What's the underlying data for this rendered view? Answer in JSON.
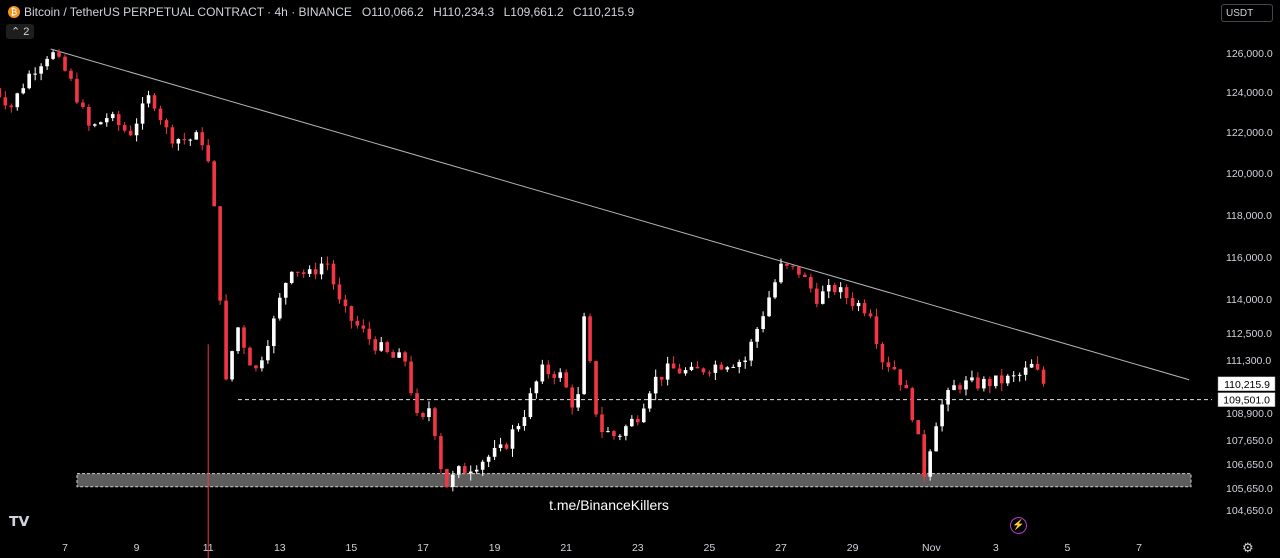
{
  "header": {
    "symbol": "Bitcoin / TetherUS PERPETUAL CONTRACT · 4h · BINANCE",
    "o_label": "O",
    "o": "110,066.2",
    "h_label": "H",
    "h": "110,234.3",
    "l_label": "L",
    "l": "109,661.2",
    "c_label": "C",
    "c": "110,215.9",
    "collapse_count": "2"
  },
  "currency": "USDT",
  "watermark": "t.me/BinanceKillers",
  "colors": {
    "up": "#ffffff",
    "down": "#f23645",
    "background": "#000000",
    "trendline": "#b2b5be"
  },
  "icons": [
    "tradingview-logo-icon",
    "settings-icon",
    "lightning-icon",
    "chevron-icon"
  ],
  "chart_data": {
    "type": "candlestick",
    "interval": "4h",
    "ylim": [
      104000,
      127000
    ],
    "y_ticks": [
      104650,
      105650,
      106650,
      107650,
      108900,
      110250,
      111300,
      112500,
      114000,
      116000,
      118000,
      120000,
      122000,
      124000,
      126000
    ],
    "y_tick_labels": [
      "104,650.0",
      "105,650.0",
      "106,650.0",
      "107,650.0",
      "108,900.0",
      "110,250.0",
      "111,300.0",
      "112,500.0",
      "114,000.0",
      "116,000.0",
      "118,000.0",
      "120,000.0",
      "122,000.0",
      "124,000.0",
      "126,000.0"
    ],
    "x_tick_labels": [
      "7",
      "9",
      "11",
      "13",
      "15",
      "17",
      "19",
      "21",
      "23",
      "25",
      "27",
      "29",
      "Nov",
      "3",
      "5",
      "7"
    ],
    "price_labels": {
      "last": "110,215.9",
      "support_line": "109,501.0"
    },
    "last_price": 110215.9,
    "support_level": 109501.0,
    "support_zone": [
      105700,
      106250
    ],
    "trendline": [
      {
        "x": 6.6,
        "y": 126200
      },
      {
        "x": 38.4,
        "y": 110400
      }
    ],
    "series": [
      {
        "name": "",
        "waypoints": [
          [
            5.0,
            124200
          ],
          [
            5.5,
            123300
          ],
          [
            6.0,
            124900
          ],
          [
            6.6,
            126100
          ],
          [
            7.1,
            124800
          ],
          [
            7.7,
            122100
          ],
          [
            8.2,
            122800
          ],
          [
            8.8,
            121900
          ],
          [
            9.4,
            123900
          ],
          [
            9.9,
            121800
          ],
          [
            10.4,
            121600
          ],
          [
            10.8,
            121800
          ],
          [
            11.1,
            119800
          ],
          [
            11.5,
            110200
          ],
          [
            11.8,
            112900
          ],
          [
            12.3,
            110700
          ],
          [
            12.8,
            112800
          ],
          [
            13.3,
            115600
          ],
          [
            13.8,
            115100
          ],
          [
            14.3,
            115900
          ],
          [
            14.7,
            113600
          ],
          [
            15.1,
            112900
          ],
          [
            15.6,
            112100
          ],
          [
            16.1,
            111400
          ],
          [
            16.5,
            111300
          ],
          [
            16.9,
            108100
          ],
          [
            17.2,
            109300
          ],
          [
            17.6,
            105700
          ],
          [
            18.0,
            106300
          ],
          [
            18.6,
            106800
          ],
          [
            19.2,
            107200
          ],
          [
            19.8,
            108800
          ],
          [
            20.3,
            110800
          ],
          [
            20.8,
            110700
          ],
          [
            21.3,
            108900
          ],
          [
            21.5,
            113000
          ],
          [
            21.9,
            108200
          ],
          [
            22.4,
            107800
          ],
          [
            23.0,
            108800
          ],
          [
            23.4,
            110300
          ],
          [
            23.9,
            110900
          ],
          [
            24.5,
            110700
          ],
          [
            25.0,
            111000
          ],
          [
            25.5,
            111200
          ],
          [
            26.0,
            111300
          ],
          [
            26.5,
            113400
          ],
          [
            27.0,
            115500
          ],
          [
            27.5,
            115300
          ],
          [
            28.0,
            114100
          ],
          [
            28.5,
            114500
          ],
          [
            29.0,
            113900
          ],
          [
            29.5,
            113500
          ],
          [
            29.8,
            111400
          ],
          [
            30.2,
            110900
          ],
          [
            30.6,
            109400
          ],
          [
            31.0,
            106300
          ],
          [
            31.4,
            109000
          ],
          [
            31.9,
            110200
          ],
          [
            32.4,
            110200
          ],
          [
            33.0,
            110300
          ],
          [
            33.6,
            110500
          ],
          [
            34.0,
            111000
          ],
          [
            34.4,
            110215.9
          ]
        ]
      }
    ]
  }
}
